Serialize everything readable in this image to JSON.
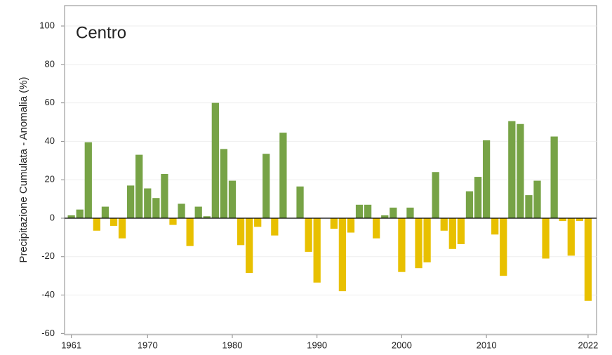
{
  "chart_data": {
    "type": "bar",
    "annotation": "Centro",
    "y_label": "Precipitazione Cumulata - Anomalia (%)",
    "x": [
      1961,
      1962,
      1963,
      1964,
      1965,
      1966,
      1967,
      1968,
      1969,
      1970,
      1971,
      1972,
      1973,
      1974,
      1975,
      1976,
      1977,
      1978,
      1979,
      1980,
      1981,
      1982,
      1983,
      1984,
      1985,
      1986,
      1987,
      1988,
      1989,
      1990,
      1991,
      1992,
      1993,
      1994,
      1995,
      1996,
      1997,
      1998,
      1999,
      2000,
      2001,
      2002,
      2003,
      2004,
      2005,
      2006,
      2007,
      2008,
      2009,
      2010,
      2011,
      2012,
      2013,
      2014,
      2015,
      2016,
      2017,
      2018,
      2019,
      2020,
      2021,
      2022
    ],
    "values": [
      1.5,
      4.5,
      39.5,
      -6.5,
      6,
      -4,
      -10.5,
      17,
      33,
      15.5,
      10.5,
      23,
      -3.5,
      7.5,
      -14.5,
      6,
      1,
      60,
      36,
      19.5,
      -14,
      -28.5,
      -4.5,
      33.5,
      -9,
      44.5,
      0,
      16.5,
      -17.5,
      -33.5,
      0,
      -5.5,
      -38,
      -7.5,
      7,
      7,
      -10.5,
      1.5,
      5.5,
      -28,
      5.5,
      -26,
      -23,
      24,
      -6.5,
      -16,
      -13.5,
      14,
      21.5,
      40.5,
      -8.5,
      -30,
      50.5,
      49,
      12,
      19.5,
      -21,
      42.5,
      -1.5,
      -19.5,
      -1.5,
      -43
    ],
    "color_positive": "#77a346",
    "color_negative": "#e8c000",
    "xlim": [
      1960.2,
      2023
    ],
    "xticks": [
      1961,
      1970,
      1980,
      1990,
      2000,
      2010,
      2022
    ],
    "ylim": [
      -60.6,
      110.6
    ],
    "yticks": [
      -60,
      -40,
      -20,
      0,
      20,
      40,
      60,
      80,
      100
    ],
    "grid": true
  }
}
